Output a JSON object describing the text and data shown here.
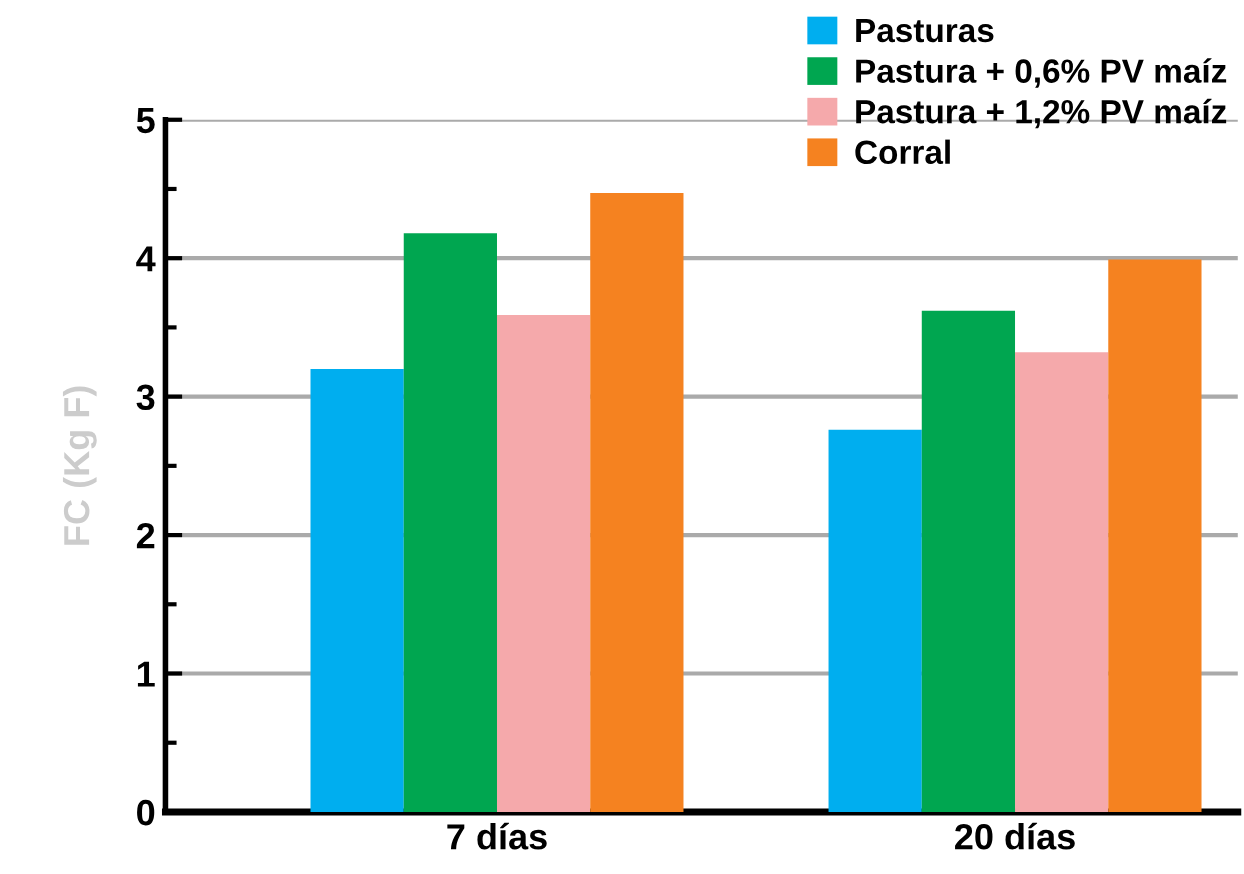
{
  "chart_data": {
    "type": "bar",
    "ylabel": "FC (Kg F)",
    "categories": [
      "7 días",
      "20 días"
    ],
    "series": [
      {
        "name": "Pasturas",
        "color": "#00aeef",
        "values": [
          3.2,
          2.76
        ]
      },
      {
        "name": "Pastura + 0,6% PV maíz",
        "color": "#00a650",
        "values": [
          4.18,
          3.62
        ]
      },
      {
        "name": "Pastura + 1,2% PV maíz",
        "color": "#f5a9ab",
        "values": [
          3.59,
          3.32
        ]
      },
      {
        "name": "Corral",
        "color": "#f58220",
        "values": [
          4.47,
          3.99
        ]
      }
    ],
    "ylim": [
      0,
      5
    ],
    "yticks": [
      0,
      {
        "value": 0.5,
        "label": null
      },
      1,
      {
        "value": 1.5,
        "label": null
      },
      2,
      {
        "value": 2.5,
        "label": null
      },
      3,
      {
        "value": 3.5,
        "label": null
      },
      4,
      {
        "value": 4.5,
        "label": null
      },
      5
    ],
    "grid": "y",
    "legend": "top right"
  }
}
